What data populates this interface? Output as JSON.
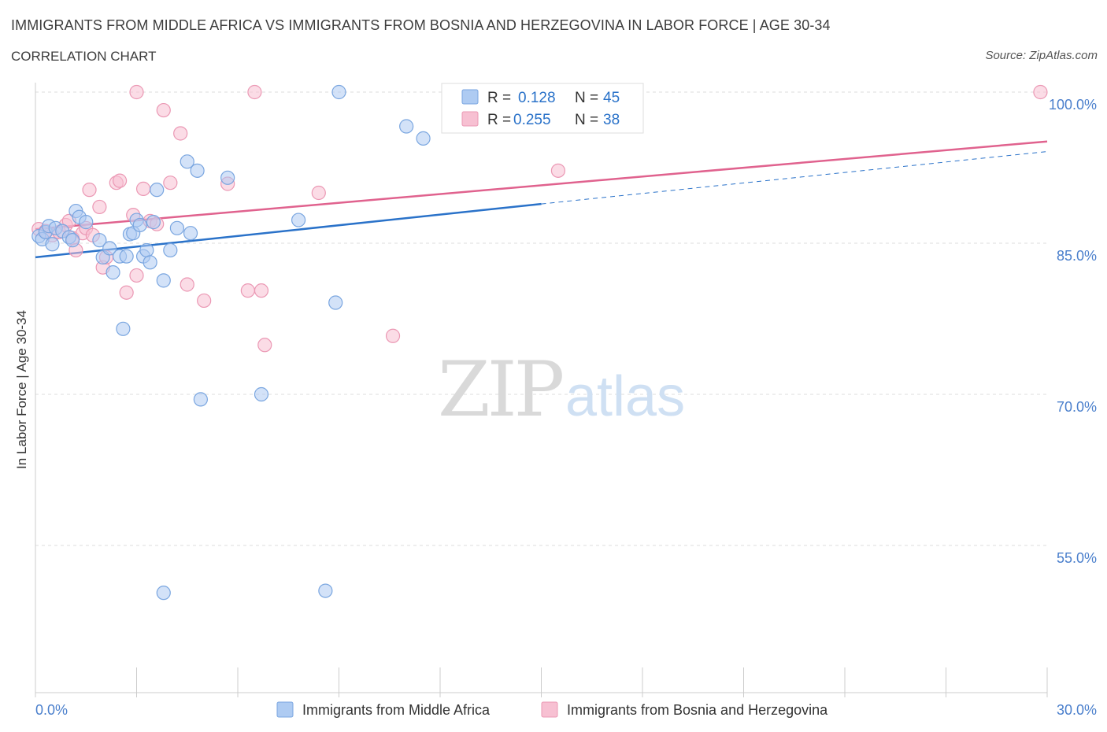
{
  "title": "IMMIGRANTS FROM MIDDLE AFRICA VS IMMIGRANTS FROM BOSNIA AND HERZEGOVINA IN LABOR FORCE | AGE 30-34",
  "subtitle": "CORRELATION CHART",
  "source": "Source: ZipAtlas.com",
  "watermark": {
    "zip": "ZIP",
    "atlas": "atlas"
  },
  "colors": {
    "blue_fill": "#aecbf2",
    "blue_stroke": "#7aa6e0",
    "blue_line": "#2a72c9",
    "pink_fill": "#f7c0d2",
    "pink_stroke": "#eb98b4",
    "pink_line": "#e0628e",
    "tick_label": "#4a7fcc",
    "grid": "#dddddd"
  },
  "legend_box": {
    "rows": [
      {
        "r_label": "R =",
        "r_value": "0.128",
        "n_label": "N =",
        "n_value": "45",
        "series": "blue"
      },
      {
        "r_label": "R =",
        "r_value": "0.255",
        "n_label": "N =",
        "n_value": "38",
        "series": "pink"
      }
    ]
  },
  "chart_data": {
    "type": "scatter",
    "title": "IMMIGRANTS FROM MIDDLE AFRICA VS IMMIGRANTS FROM BOSNIA AND HERZEGOVINA IN LABOR FORCE | AGE 30-34",
    "subtitle": "CORRELATION CHART",
    "xlabel": "",
    "ylabel": "In Labor Force | Age 30-34",
    "xlim": [
      0,
      30
    ],
    "ylim": [
      40,
      100
    ],
    "x_tick_labels": [
      "0.0%",
      "30.0%"
    ],
    "y_ticks": [
      55,
      70,
      85,
      100
    ],
    "y_tick_labels": [
      "55.0%",
      "70.0%",
      "85.0%",
      "100.0%"
    ],
    "grid": true,
    "legend_position": "bottom",
    "series": [
      {
        "name": "Immigrants from Middle Africa",
        "color": "blue",
        "R": 0.128,
        "N": 45,
        "trend": {
          "x0": 0,
          "y0": 83.6,
          "x1": 15,
          "y1": 88.9,
          "dashed_to_x": 30,
          "dashed_to_y": 94.1
        },
        "points": [
          [
            0.1,
            85.7
          ],
          [
            0.2,
            85.4
          ],
          [
            0.3,
            86.1
          ],
          [
            0.4,
            86.7
          ],
          [
            0.5,
            84.9
          ],
          [
            0.6,
            86.5
          ],
          [
            0.8,
            86.2
          ],
          [
            1.0,
            85.6
          ],
          [
            1.1,
            85.3
          ],
          [
            1.2,
            88.2
          ],
          [
            1.3,
            87.6
          ],
          [
            1.5,
            87.1
          ],
          [
            1.9,
            85.3
          ],
          [
            2.0,
            83.6
          ],
          [
            2.2,
            84.5
          ],
          [
            2.3,
            82.1
          ],
          [
            2.5,
            83.7
          ],
          [
            2.6,
            76.5
          ],
          [
            2.7,
            83.7
          ],
          [
            2.8,
            85.9
          ],
          [
            2.9,
            86.0
          ],
          [
            3.0,
            87.3
          ],
          [
            3.1,
            86.8
          ],
          [
            3.2,
            83.7
          ],
          [
            3.3,
            84.3
          ],
          [
            3.4,
            83.1
          ],
          [
            3.5,
            87.1
          ],
          [
            3.6,
            90.3
          ],
          [
            3.8,
            50.3
          ],
          [
            3.8,
            81.3
          ],
          [
            4.0,
            84.3
          ],
          [
            4.2,
            86.5
          ],
          [
            4.5,
            93.1
          ],
          [
            4.6,
            86.0
          ],
          [
            4.8,
            92.2
          ],
          [
            4.9,
            69.5
          ],
          [
            5.7,
            91.5
          ],
          [
            6.7,
            70.0
          ],
          [
            7.8,
            87.3
          ],
          [
            8.6,
            50.5
          ],
          [
            8.9,
            79.1
          ],
          [
            9.0,
            100.0
          ],
          [
            11.0,
            96.6
          ],
          [
            11.5,
            95.4
          ],
          [
            14.5,
            100.0
          ]
        ]
      },
      {
        "name": "Immigrants from Bosnia and Herzegovina",
        "color": "pink",
        "R": 0.255,
        "N": 38,
        "trend": {
          "x0": 0,
          "y0": 86.4,
          "x1": 30,
          "y1": 95.1
        },
        "points": [
          [
            0.1,
            86.4
          ],
          [
            0.3,
            86.2
          ],
          [
            0.5,
            85.8
          ],
          [
            0.7,
            86.1
          ],
          [
            0.9,
            86.8
          ],
          [
            1.0,
            87.2
          ],
          [
            1.1,
            85.5
          ],
          [
            1.2,
            84.3
          ],
          [
            1.4,
            86.0
          ],
          [
            1.5,
            86.5
          ],
          [
            1.6,
            90.3
          ],
          [
            1.7,
            85.8
          ],
          [
            1.9,
            88.6
          ],
          [
            2.0,
            82.6
          ],
          [
            2.1,
            83.6
          ],
          [
            2.4,
            91.0
          ],
          [
            2.5,
            91.2
          ],
          [
            2.7,
            80.1
          ],
          [
            2.9,
            87.8
          ],
          [
            3.0,
            81.8
          ],
          [
            3.2,
            90.4
          ],
          [
            3.4,
            87.2
          ],
          [
            3.6,
            86.9
          ],
          [
            3.0,
            100.0
          ],
          [
            3.8,
            98.2
          ],
          [
            4.0,
            91.0
          ],
          [
            4.3,
            95.9
          ],
          [
            4.5,
            80.9
          ],
          [
            5.0,
            79.3
          ],
          [
            5.7,
            90.9
          ],
          [
            6.3,
            80.3
          ],
          [
            6.7,
            80.3
          ],
          [
            6.8,
            74.9
          ],
          [
            6.5,
            100.0
          ],
          [
            8.4,
            90.0
          ],
          [
            10.6,
            75.8
          ],
          [
            15.5,
            92.2
          ],
          [
            29.8,
            100.0
          ]
        ]
      }
    ]
  }
}
